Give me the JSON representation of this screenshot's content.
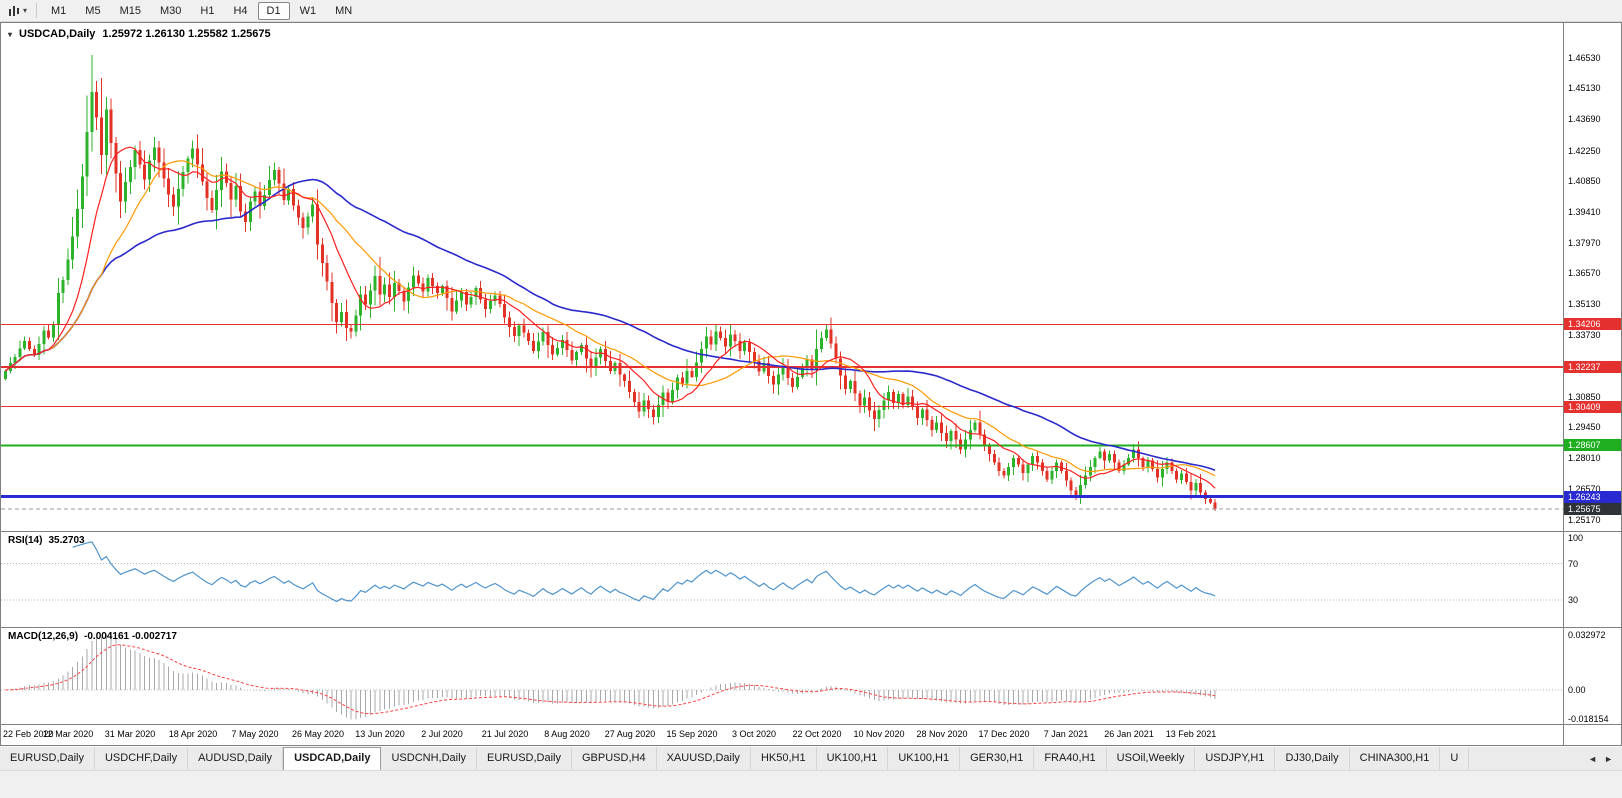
{
  "toolbar": {
    "timeframes": [
      "M1",
      "M5",
      "M15",
      "M30",
      "H1",
      "H4",
      "D1",
      "W1",
      "MN"
    ],
    "active_timeframe": "D1"
  },
  "icons": {
    "dropdown": "▾",
    "scroll_left": "◄",
    "scroll_right": "►"
  },
  "chart": {
    "title": "USDCAD,Daily",
    "ohlc": "1.25972 1.26130 1.25582 1.25675"
  },
  "price_scale": {
    "labels": [
      "1.46530",
      "1.45130",
      "1.43690",
      "1.42250",
      "1.40850",
      "1.39410",
      "1.37970",
      "1.36570",
      "1.35130",
      "1.33730",
      "1.32290",
      "1.30850",
      "1.29450",
      "1.28010",
      "1.26570",
      "1.25170"
    ],
    "badges": [
      {
        "text": "1.34206",
        "bg": "#e53030"
      },
      {
        "text": "1.32237",
        "bg": "#e53030"
      },
      {
        "text": "1.30409",
        "bg": "#e53030"
      },
      {
        "text": "1.28607",
        "bg": "#1fae1f"
      },
      {
        "text": "1.26243",
        "bg": "#2a2ad2"
      },
      {
        "text": "1.25675",
        "bg": "#2e3338"
      }
    ]
  },
  "indicators": {
    "rsi": {
      "name": "RSI(14)",
      "value": "35.2703",
      "scale_labels": [
        "100",
        "70",
        "30"
      ],
      "levels": [
        70,
        30
      ]
    },
    "macd": {
      "name": "MACD(12,26,9)",
      "values": "-0.004161 -0.002717",
      "scale_labels": [
        "0.032972",
        "0.00",
        "-0.018154"
      ]
    }
  },
  "time_axis": [
    "22 Feb 2020",
    "12 Mar 2020",
    "31 Mar 2020",
    "18 Apr 2020",
    "7 May 2020",
    "26 May 2020",
    "13 Jun 2020",
    "2 Jul 2020",
    "21 Jul 2020",
    "8 Aug 2020",
    "27 Aug 2020",
    "15 Sep 2020",
    "3 Oct 2020",
    "22 Oct 2020",
    "10 Nov 2020",
    "28 Nov 2020",
    "17 Dec 2020",
    "7 Jan 2021",
    "26 Jan 2021",
    "13 Feb 2021"
  ],
  "tabs": {
    "items": [
      "EURUSD,Daily",
      "USDCHF,Daily",
      "AUDUSD,Daily",
      "USDCAD,Daily",
      "USDCNH,Daily",
      "EURUSD,Daily",
      "GBPUSD,H4",
      "XAUUSD,Daily",
      "HK50,H1",
      "UK100,H1",
      "UK100,H1",
      "GER30,H1",
      "FRA40,H1",
      "USOil,Weekly",
      "USDJPY,H1",
      "DJ30,Daily",
      "CHINA300,H1",
      "U"
    ],
    "active_index": 3
  },
  "chart_data": {
    "type": "candlestick",
    "symbol": "USDCAD",
    "timeframe": "Daily",
    "ylim": [
      1.2465,
      1.4815
    ],
    "first_open": 1.3168,
    "closes": [
      1.3205,
      1.3242,
      1.327,
      1.331,
      1.3345,
      1.3308,
      1.328,
      1.333,
      1.3392,
      1.336,
      1.342,
      1.3565,
      1.3625,
      1.372,
      1.3828,
      1.3955,
      1.4105,
      1.431,
      1.4496,
      1.4378,
      1.4205,
      1.4415,
      1.426,
      1.412,
      1.399,
      1.408,
      1.415,
      1.4228,
      1.416,
      1.4092,
      1.418,
      1.4238,
      1.417,
      1.4095,
      1.4022,
      1.3965,
      1.4048,
      1.4125,
      1.4188,
      1.4235,
      1.416,
      1.4082,
      1.4005,
      1.395,
      1.4042,
      1.4128,
      1.4075,
      1.3998,
      1.406,
      1.3942,
      1.3895,
      1.399,
      1.4035,
      1.3968,
      1.402,
      1.4088,
      1.4135,
      1.4072,
      1.3995,
      1.4048,
      1.397,
      1.3915,
      1.3868,
      1.392,
      1.3975,
      1.379,
      1.3705,
      1.3618,
      1.352,
      1.3432,
      1.3478,
      1.3405,
      1.3388,
      1.3462,
      1.356,
      1.3512,
      1.3578,
      1.3645,
      1.356,
      1.3605,
      1.3548,
      1.3612,
      1.3575,
      1.3528,
      1.3592,
      1.3648,
      1.361,
      1.3572,
      1.3635,
      1.3598,
      1.3565,
      1.3598,
      1.3542,
      1.348,
      1.3532,
      1.357,
      1.3512,
      1.3548,
      1.3588,
      1.3535,
      1.3492,
      1.3528,
      1.3555,
      1.3515,
      1.3452,
      1.3408,
      1.3368,
      1.3415,
      1.3382,
      1.3345,
      1.3298,
      1.3342,
      1.3385,
      1.3325,
      1.3282,
      1.3312,
      1.3348,
      1.3302,
      1.3255,
      1.3292,
      1.3325,
      1.3262,
      1.3218,
      1.3268,
      1.3308,
      1.3252,
      1.3205,
      1.3242,
      1.3188,
      1.3158,
      1.3108,
      1.3062,
      1.3018,
      1.3068,
      1.3028,
      1.2992,
      1.3048,
      1.3105,
      1.3062,
      1.3118,
      1.3175,
      1.3148,
      1.3205,
      1.3178,
      1.3245,
      1.3308,
      1.3365,
      1.3328,
      1.3388,
      1.3358,
      1.3318,
      1.3375,
      1.3345,
      1.3298,
      1.3338,
      1.3292,
      1.3252,
      1.3202,
      1.3242,
      1.3182,
      1.3142,
      1.3188,
      1.3228,
      1.3172,
      1.3132,
      1.3178,
      1.3218,
      1.3258,
      1.3212,
      1.3308,
      1.3358,
      1.3398,
      1.3332,
      1.3262,
      1.3185,
      1.3122,
      1.3158,
      1.3102,
      1.3045,
      1.3082,
      1.3022,
      1.2982,
      1.3025,
      1.3068,
      1.3108,
      1.3058,
      1.3098,
      1.3048,
      1.3088,
      1.3038,
      1.2988,
      1.3028,
      1.2978,
      1.2932,
      1.2968,
      1.2918,
      1.2882,
      1.2928,
      1.2888,
      1.2842,
      1.2888,
      1.2932,
      1.2968,
      1.2912,
      1.2862,
      1.2822,
      1.2782,
      1.2742,
      1.2722,
      1.2762,
      1.2802,
      1.2772,
      1.2732,
      1.2772,
      1.2812,
      1.2782,
      1.2742,
      1.2702,
      1.2742,
      1.2782,
      1.2742,
      1.2698,
      1.2652,
      1.2632,
      1.2678,
      1.2722,
      1.2762,
      1.2802,
      1.2832,
      1.2792,
      1.2822,
      1.2782,
      1.2742,
      1.2772,
      1.2802,
      1.2842,
      1.2802,
      1.2762,
      1.2792,
      1.2752,
      1.2712,
      1.2752,
      1.2782,
      1.2742,
      1.2702,
      1.2732,
      1.2692,
      1.2652,
      1.2688,
      1.2642,
      1.2612,
      1.25972,
      1.25675
    ],
    "high_overrides": {
      "17": 1.448,
      "18": 1.4668,
      "20": 1.456,
      "148": 1.3418,
      "171": 1.342,
      "252": 1.2613
    },
    "low_overrides": {
      "72": 1.3355,
      "135": 1.2958,
      "181": 1.2928,
      "223": 1.2608,
      "252": 1.25582
    },
    "colors": {
      "up": "#2bb32b",
      "down": "#e23225"
    },
    "hlines": [
      {
        "price": 1.34206,
        "color": "#e53030",
        "width": 1
      },
      {
        "price": 1.32237,
        "color": "#e53030",
        "width": 2
      },
      {
        "price": 1.30409,
        "color": "#e53030",
        "width": 1
      },
      {
        "price": 1.28607,
        "color": "#1fae1f",
        "width": 2
      },
      {
        "price": 1.26243,
        "color": "#2a2ad2",
        "width": 3
      },
      {
        "price": 1.25675,
        "color": "#9a9a9a",
        "width": 1,
        "dash": true
      }
    ],
    "ma": [
      {
        "period": 50,
        "color": "#2929cc",
        "width": 1.6
      },
      {
        "period": 21,
        "color": "#ff9900",
        "width": 1.2
      },
      {
        "period": 10,
        "color": "#ff1f1f",
        "width": 1.2
      }
    ],
    "rsi_period": 14,
    "rsi_color": "#4f94cd",
    "macd_params": [
      12,
      26,
      9
    ],
    "macd_scale": [
      0.032972,
      0.0,
      -0.018154
    ],
    "macd_hist_color": "#a9a9a9",
    "macd_signal_color": "#ff4040"
  }
}
